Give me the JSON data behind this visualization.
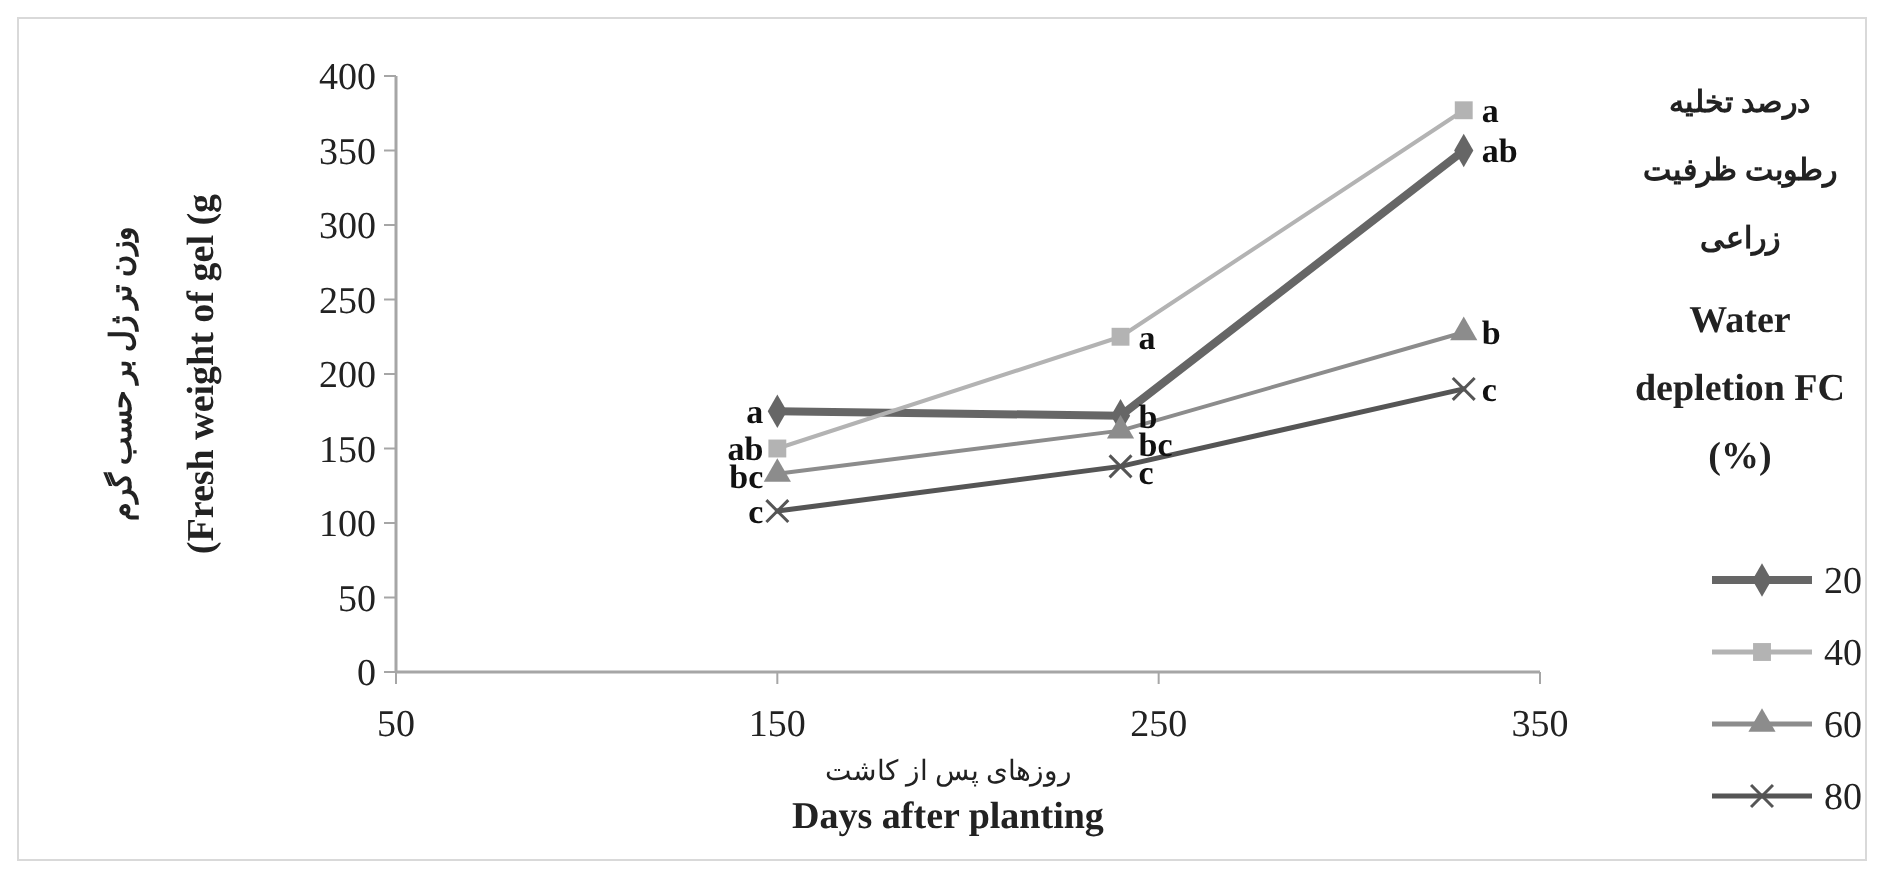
{
  "chart_data": {
    "type": "line",
    "xlabel": "روزهای پس از کاشت\nDays after planting",
    "ylabel": "وزن تر ژل بر حسب گرم\n(Fresh weight of gel (g",
    "legend_title": "درصد تخلیه\nرطوبت ظرفیت\nزراعی\nWater\ndepletion  FC\n(%)",
    "x": [
      150,
      240,
      330
    ],
    "xlim": [
      50,
      350
    ],
    "xticks": [
      50,
      150,
      250,
      350
    ],
    "ylim": [
      0,
      400
    ],
    "yticks": [
      0,
      50,
      100,
      150,
      200,
      250,
      300,
      350,
      400
    ],
    "grid": false,
    "legend": "right",
    "line_style": "solid",
    "series": [
      {
        "name": "20",
        "color": "#666666",
        "marker": "diamond",
        "values": [
          175,
          172,
          350
        ]
      },
      {
        "name": "40",
        "color": "#b3b3b3",
        "marker": "square",
        "values": [
          150,
          225,
          377
        ]
      },
      {
        "name": "60",
        "color": "#8c8c8c",
        "marker": "triangle",
        "values": [
          133,
          162,
          228
        ]
      },
      {
        "name": "80",
        "color": "#555555",
        "marker": "cross",
        "values": [
          108,
          138,
          190
        ]
      }
    ],
    "annotations": [
      {
        "text": "a",
        "x": 150,
        "y": 175
      },
      {
        "text": "ab",
        "x": 150,
        "y": 150
      },
      {
        "text": "bc",
        "x": 150,
        "y": 133
      },
      {
        "text": "c",
        "x": 150,
        "y": 108
      },
      {
        "text": "a",
        "x": 240,
        "y": 225
      },
      {
        "text": "b",
        "x": 240,
        "y": 172
      },
      {
        "text": "bc",
        "x": 240,
        "y": 162
      },
      {
        "text": "c",
        "x": 240,
        "y": 138
      },
      {
        "text": "a",
        "x": 330,
        "y": 377
      },
      {
        "text": "ab",
        "x": 330,
        "y": 350
      },
      {
        "text": "b",
        "x": 330,
        "y": 228
      },
      {
        "text": "c",
        "x": 330,
        "y": 190
      }
    ]
  }
}
